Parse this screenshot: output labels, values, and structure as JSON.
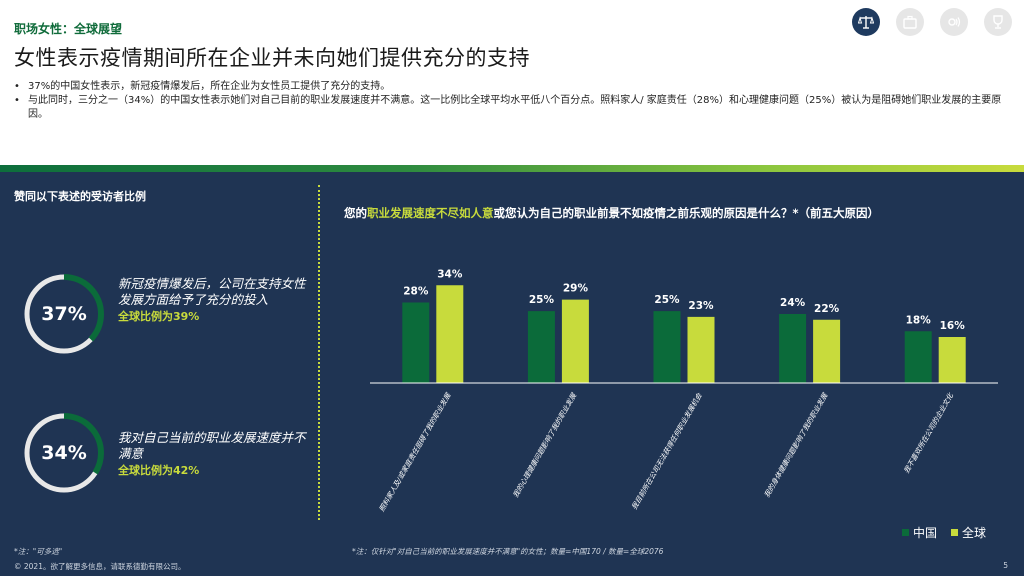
{
  "header": {
    "kicker": "职场女性：全球展望",
    "title": "女性表示疫情期间所在企业并未向她们提供充分的支持",
    "bullets": [
      "37%的中国女性表示，新冠疫情爆发后，所在企业为女性员工提供了充分的支持。",
      "与此同时，三分之一（34%）的中国女性表示她们对自己目前的职业发展速度并不满意。这一比例比全球平均水平低八个百分点。照料家人/ 家庭责任（28%）和心理健康问题（25%）被认为是阻碍她们职业发展的主要原因。"
    ]
  },
  "top_icons": [
    "scale-icon",
    "briefcase-icon",
    "speaker-icon",
    "trophy-icon"
  ],
  "left_panel": {
    "heading": "赞同以下表述的受访者比例",
    "stats": [
      {
        "value_label": "37%",
        "value": 37,
        "text": "新冠疫情爆发后，公司在支持女性发展方面给予了充分的投入",
        "global": "全球比例为39%"
      },
      {
        "value_label": "34%",
        "value": 34,
        "text": "我对自己当前的职业发展速度并不满意",
        "global": "全球比例为42%"
      }
    ]
  },
  "chart_title": {
    "prefix": "您的",
    "highlight": "职业发展速度不尽如人意",
    "suffix": "或您认为自己的职业前景不如疫情之前乐观的原因是什么？*（前五大原因）"
  },
  "chart_data": {
    "type": "bar",
    "categories": [
      "照料家人及/或家庭责任阻碍了我的职业发展",
      "我的心理健康问题影响了我的职业发展",
      "我目前所在公司无法获得任何职业发展机会",
      "我的身体健康问题影响了我的职业发展",
      "我不喜欢所在公司的企业文化"
    ],
    "series": [
      {
        "name": "中国",
        "values": [
          28,
          25,
          25,
          24,
          18
        ],
        "color": "#0b6b3a"
      },
      {
        "name": "全球",
        "values": [
          34,
          29,
          23,
          22,
          16
        ],
        "color": "#c8db3c"
      }
    ],
    "ylim": [
      0,
      40
    ],
    "legend": "bottom-right"
  },
  "legend": {
    "china": "中国",
    "global": "全球"
  },
  "colors": {
    "panel": "#1f3453",
    "china": "#0b6b3a",
    "global": "#c8db3c",
    "donut_track": "#e8e8e8",
    "donut_fill": "#0b6b3a"
  },
  "footer": {
    "note_left": "*注：\"可多选\"",
    "copyright": "© 2021。欲了解更多信息，请联系德勤有限公司。",
    "note_right": "*注：仅针对\"对自己当前的职业发展速度并不满意\"的女性；数量=中国170 / 数量=全球2076",
    "page": "5"
  }
}
